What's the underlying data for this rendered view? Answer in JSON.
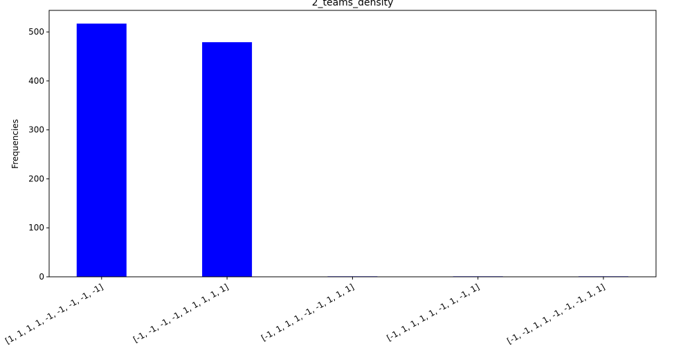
{
  "chart_data": {
    "type": "bar",
    "title": "2_teams_density",
    "xlabel": "",
    "ylabel": "Frequencies",
    "categories": [
      "[1, 1, 1, 1, -1, -1, -1, -1, -1]",
      "[-1, -1, -1, -1, 1, 1, 1, 1, 1]",
      "[-1, 1, 1, 1, -1, -1, 1, 1, 1]",
      "[-1, 1, 1, 1, 1, -1, 1, -1, 1]",
      "[-1, -1, 1, 1, -1, -1, -1, 1, 1]"
    ],
    "values": [
      517,
      479,
      1,
      1,
      1
    ],
    "ylim": [
      0,
      544
    ],
    "yticks": [
      0,
      100,
      200,
      300,
      400,
      500
    ],
    "bar_color": "#0000ff",
    "grid": false,
    "legend": "none"
  }
}
